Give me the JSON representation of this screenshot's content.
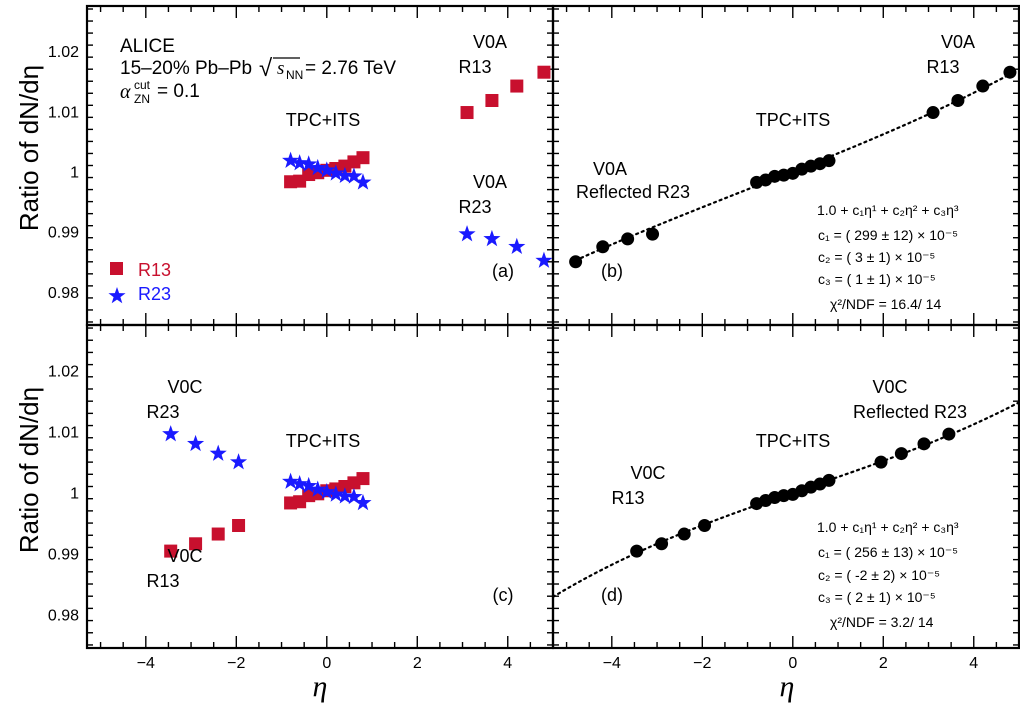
{
  "figure": {
    "ylabel_top": "Ratio of dN/dη",
    "ylabel_bottom": "Ratio of dN/dη",
    "xlabel_left": "η",
    "xlabel_right": "η",
    "y_ticks": [
      "0.98",
      "0.99",
      "1",
      "1.01",
      "1.02"
    ],
    "x_ticks": [
      "−4",
      "−2",
      "0",
      "2",
      "4"
    ],
    "header_lines": [
      "ALICE",
      "15–20% Pb–Pb √s_NN = 2.76 TeV",
      "α_ZN^cut = 0.1"
    ]
  },
  "colors": {
    "r13": "#c8102e",
    "r23": "#1a1aff",
    "fit_points": "#000000"
  },
  "chart_data": [
    {
      "panel": "(a)",
      "type": "scatter",
      "xlabel": "",
      "ylabel": "Ratio of dN/dη",
      "xlim": [
        -5.3,
        5.0
      ],
      "ylim": [
        0.9745,
        1.0275
      ],
      "legend": {
        "position": "bottom-left",
        "entries": [
          "R13",
          "R23"
        ]
      },
      "labels": [
        "TPC+ITS",
        "V0A R13",
        "V0A R23",
        "(a)"
      ],
      "series": [
        {
          "name": "R13",
          "marker": "square",
          "color": "#c8102e",
          "x": [
            -0.8,
            -0.6,
            -0.4,
            -0.2,
            0,
            0.2,
            0.4,
            0.6,
            0.8,
            3.1,
            3.65,
            4.2,
            4.8
          ],
          "y": [
            0.9983,
            0.9984,
            0.9995,
            0.9998,
            1.0002,
            1.0005,
            1.0009,
            1.0016,
            1.0023,
            1.0098,
            1.0118,
            1.0142,
            1.0165
          ]
        },
        {
          "name": "R23",
          "marker": "star",
          "color": "#1a1aff",
          "x": [
            -0.8,
            -0.6,
            -0.4,
            -0.2,
            0,
            0.2,
            0.4,
            0.6,
            0.8,
            3.1,
            3.65,
            4.2,
            4.8
          ],
          "y": [
            1.0018,
            1.0014,
            1.0012,
            1.0006,
            1.0002,
            0.9997,
            0.9993,
            0.9992,
            0.9982,
            0.9896,
            0.9888,
            0.9875,
            0.9852
          ]
        }
      ]
    },
    {
      "panel": "(b)",
      "type": "scatter",
      "xlabel": "",
      "ylabel": "",
      "xlim": [
        -5.3,
        5.0
      ],
      "ylim": [
        0.9745,
        1.0275
      ],
      "labels": [
        "V0A R13",
        "TPC+ITS",
        "V0A Reflected R23",
        "(b)"
      ],
      "fit": {
        "function": "1.0 + c1 η^1 + c2 η^2 + c3 η^3",
        "lines": [
          "1.0 + c₁η¹ + c₂η² + c₃η³",
          "c₁ = ( 299 ±  12) × 10⁻⁵",
          "c₂ = (    3 ±    1) × 10⁻⁵",
          "c₃ = (    1 ±    1) × 10⁻⁵",
          "χ²/NDF = 16.4/ 14"
        ],
        "c1": 0.00299,
        "c2": 3e-05,
        "c3": 1e-05,
        "xrange": [
          -4.8,
          4.8
        ]
      },
      "series": [
        {
          "name": "",
          "marker": "circle",
          "color": "#000000",
          "x": [
            -4.8,
            -4.2,
            -3.65,
            -3.1,
            -0.8,
            -0.6,
            -0.4,
            -0.2,
            0,
            0.2,
            0.4,
            0.6,
            0.8,
            3.1,
            3.65,
            4.2,
            4.8
          ],
          "y": [
            0.985,
            0.9875,
            0.9888,
            0.9896,
            0.9982,
            0.9986,
            0.9992,
            0.9994,
            0.9997,
            1.0004,
            1.0009,
            1.0013,
            1.0018,
            1.0098,
            1.0118,
            1.0142,
            1.0165
          ]
        }
      ]
    },
    {
      "panel": "(c)",
      "type": "scatter",
      "xlabel": "η",
      "ylabel": "Ratio of dN/dη",
      "xlim": [
        -5.3,
        5.0
      ],
      "ylim": [
        0.9745,
        1.0275
      ],
      "labels": [
        "V0C R23",
        "TPC+ITS",
        "V0C R13",
        "(c)"
      ],
      "series": [
        {
          "name": "R13",
          "marker": "square",
          "color": "#c8102e",
          "x": [
            -3.45,
            -2.9,
            -2.4,
            -1.95,
            -0.8,
            -0.6,
            -0.4,
            -0.2,
            0,
            0.2,
            0.4,
            0.6,
            0.8
          ],
          "y": [
            0.9904,
            0.9916,
            0.9932,
            0.9946,
            0.9983,
            0.9985,
            0.9995,
            0.9998,
            1.0003,
            1.0006,
            1.001,
            1.0016,
            1.0023
          ]
        },
        {
          "name": "R23",
          "marker": "star",
          "color": "#1a1aff",
          "x": [
            -3.45,
            -2.9,
            -2.4,
            -1.95,
            -0.8,
            -0.6,
            -0.4,
            -0.2,
            0,
            0.2,
            0.4,
            0.6,
            0.8
          ],
          "y": [
            1.0096,
            1.008,
            1.0064,
            1.005,
            1.0018,
            1.0014,
            1.0011,
            1.0005,
            1.0001,
            0.9997,
            0.9994,
            0.9993,
            0.9983
          ]
        }
      ]
    },
    {
      "panel": "(d)",
      "type": "scatter",
      "xlabel": "η",
      "ylabel": "",
      "xlim": [
        -5.3,
        5.0
      ],
      "ylim": [
        0.9745,
        1.0275
      ],
      "labels": [
        "V0C Reflected R23",
        "TPC+ITS",
        "V0C R13",
        "(d)"
      ],
      "fit": {
        "function": "1.0 + c1 η^1 + c2 η^2 + c3 η^3",
        "lines": [
          "1.0 + c₁η¹ + c₂η² + c₃η³",
          "c₁ = ( 256 ±  13) × 10⁻⁵",
          "c₂ = (   -2 ±    2) × 10⁻⁵",
          "c₃ = (    2 ±    1) × 10⁻⁵",
          "χ²/NDF = 3.2/ 14"
        ],
        "c1": 0.00256,
        "c2": -2e-05,
        "c3": 2e-05,
        "xrange": [
          -5.3,
          5.0
        ]
      },
      "series": [
        {
          "name": "",
          "marker": "circle",
          "color": "#000000",
          "x": [
            -3.45,
            -2.9,
            -2.4,
            -1.95,
            -0.8,
            -0.6,
            -0.4,
            -0.2,
            0,
            0.2,
            0.4,
            0.6,
            0.8,
            1.95,
            2.4,
            2.9,
            3.45
          ],
          "y": [
            0.9904,
            0.9916,
            0.9932,
            0.9946,
            0.9982,
            0.9987,
            0.9992,
            0.9995,
            0.9997,
            1.0003,
            1.0009,
            1.0014,
            1.002,
            1.005,
            1.0064,
            1.008,
            1.0096
          ]
        }
      ]
    }
  ]
}
